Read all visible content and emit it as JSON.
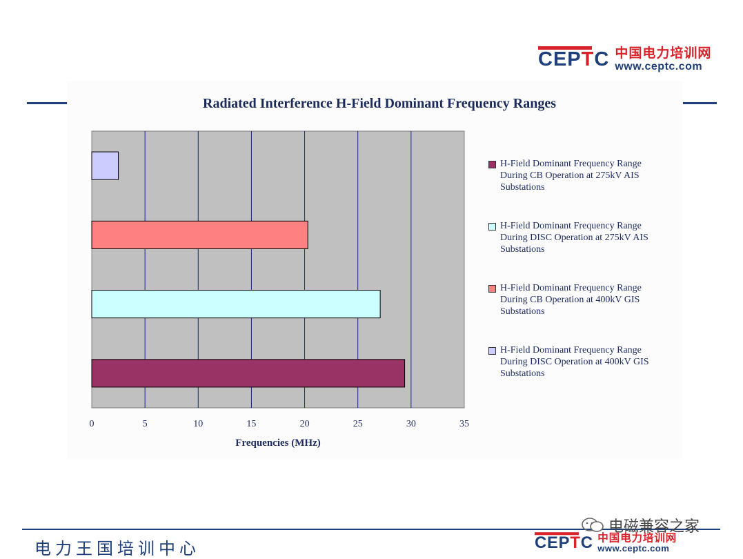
{
  "header": {
    "logo_mark_left": "CEP",
    "logo_mark_right": "C",
    "logo_mark_accent": "T",
    "logo_cn": "中国电力培训网",
    "logo_url": "www.ceptc.com"
  },
  "footer": {
    "text": "电力王国培训中心",
    "logo_mark_left": "CEP",
    "logo_mark_right": "C",
    "logo_mark_accent": "T",
    "logo_cn": "中国电力培训网",
    "logo_url": "www.ceptc.com"
  },
  "watermark": {
    "text": "电磁兼容之家"
  },
  "colors": {
    "brand_blue": "#1f3f7a",
    "brand_red": "#d8232a",
    "plot_background": "#c0c0c0",
    "gridline": "#1a237e"
  },
  "chart_data": {
    "type": "bar",
    "orientation": "horizontal",
    "title": "Radiated Interference H-Field Dominant Frequency Ranges",
    "xlabel": "Frequencies (MHz)",
    "ylabel": "",
    "xlim": [
      0,
      35
    ],
    "xticks": [
      0,
      5,
      10,
      15,
      20,
      25,
      30,
      35
    ],
    "grid": "vertical",
    "legend_position": "right",
    "series": [
      {
        "name": "H-Field Dominant Frequency Range During CB Operation at 275kV AIS Substations",
        "value": 29.4,
        "color": "#993366"
      },
      {
        "name": "H-Field Dominant Frequency Range During DISC Operation at 275kV AIS Substations",
        "value": 27.1,
        "color": "#ccffff"
      },
      {
        "name": "H-Field Dominant Frequency Range During CB Operation at 400kV GIS Substations",
        "value": 20.3,
        "color": "#ff8080"
      },
      {
        "name": "H-Field Dominant Frequency Range During DISC Operation at 400kV GIS Substations",
        "value": 2.5,
        "color": "#ccccff"
      }
    ]
  }
}
